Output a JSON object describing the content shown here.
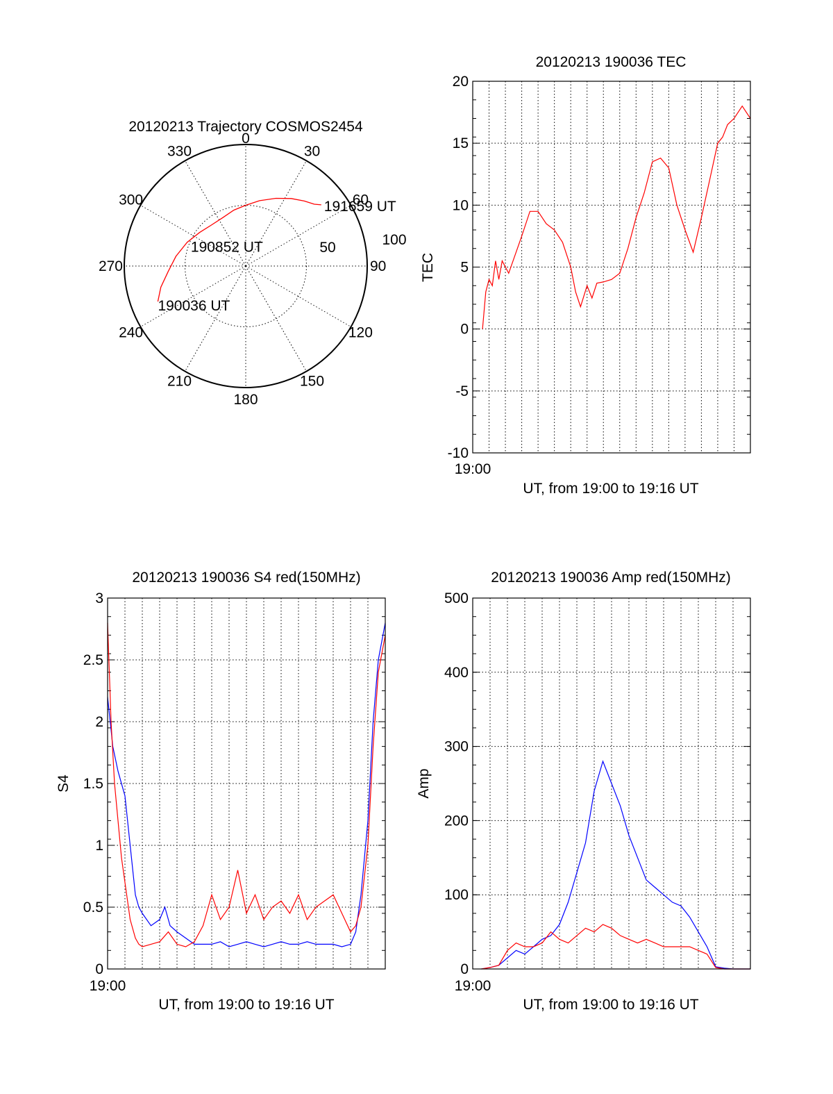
{
  "chart_data": [
    {
      "type": "polar-trajectory",
      "title": "20120213 Trajectory COSMOS2454",
      "angle_ticks": [
        "0",
        "30",
        "60",
        "90",
        "120",
        "150",
        "180",
        "210",
        "240",
        "270",
        "300",
        "330"
      ],
      "radius_ticks": [
        "50",
        "100"
      ],
      "radius_max": 100,
      "trajectory": {
        "color": "#ff0000",
        "points": [
          {
            "azimuth": 248,
            "elevation": 22
          },
          {
            "azimuth": 256,
            "elevation": 28
          },
          {
            "azimuth": 266,
            "elevation": 36
          },
          {
            "azimuth": 278,
            "elevation": 42
          },
          {
            "azimuth": 292,
            "elevation": 48
          },
          {
            "azimuth": 306,
            "elevation": 53
          },
          {
            "azimuth": 320,
            "elevation": 56
          },
          {
            "azimuth": 334,
            "elevation": 56
          },
          {
            "azimuth": 348,
            "elevation": 53
          },
          {
            "azimuth": 0,
            "elevation": 50
          },
          {
            "azimuth": 12,
            "elevation": 45
          },
          {
            "azimuth": 24,
            "elevation": 39
          },
          {
            "azimuth": 34,
            "elevation": 33
          },
          {
            "azimuth": 42,
            "elevation": 28
          },
          {
            "azimuth": 48,
            "elevation": 24
          },
          {
            "azimuth": 51,
            "elevation": 20
          }
        ]
      },
      "annotations": [
        {
          "text": "191659 UT",
          "at": "end"
        },
        {
          "text": "190852 UT",
          "at": "middle"
        },
        {
          "text": "190036 UT",
          "at": "start"
        }
      ]
    },
    {
      "type": "line",
      "title": "20120213 190036 TEC",
      "xlabel": "UT, from 19:00 to 19:16 UT",
      "ylabel": "TEC",
      "xlim": [
        0,
        17
      ],
      "ylim": [
        -10,
        20
      ],
      "yticks": [
        "-10",
        "-5",
        "0",
        "5",
        "10",
        "15",
        "20"
      ],
      "xtick_label": "19:00",
      "grid": true,
      "series": [
        {
          "color": "#ff0000",
          "x": [
            0.6,
            0.8,
            1.0,
            1.2,
            1.4,
            1.6,
            1.8,
            2.0,
            2.2,
            2.6,
            3.0,
            3.5,
            4.0,
            4.5,
            5.0,
            5.5,
            6.0,
            6.3,
            6.6,
            7.0,
            7.3,
            7.6,
            8.0,
            8.5,
            9.0,
            9.5,
            10.0,
            10.5,
            11.0,
            11.5,
            12.0,
            12.5,
            13.0,
            13.5,
            14.0,
            14.5,
            15.0,
            15.3,
            15.6,
            16.0,
            16.5,
            17.0
          ],
          "y": [
            0,
            3,
            4,
            3.5,
            5.5,
            4,
            5.5,
            5,
            4.5,
            6,
            7.5,
            9.5,
            9.5,
            8.5,
            8,
            7,
            5,
            3,
            1.8,
            3.5,
            2.5,
            3.7,
            3.8,
            4,
            4.5,
            6.5,
            9,
            11,
            13.5,
            13.8,
            13,
            10,
            8,
            6.2,
            9,
            12,
            15,
            15.5,
            16.5,
            17,
            18,
            17
          ]
        }
      ]
    },
    {
      "type": "line",
      "title": "20120213 190036 S4 red(150MHz)",
      "xlabel": "UT, from 19:00 to 19:16 UT",
      "ylabel": "S4",
      "xlim": [
        0,
        16
      ],
      "ylim": [
        0,
        3
      ],
      "yticks": [
        "0",
        "0.5",
        "1",
        "1.5",
        "2",
        "2.5",
        "3"
      ],
      "xtick_label": "19:00",
      "grid": true,
      "series": [
        {
          "color": "#0000ff",
          "x": [
            0.0,
            0.3,
            0.6,
            1.0,
            1.3,
            1.6,
            1.8,
            2.0,
            2.5,
            3.0,
            3.3,
            3.6,
            4.0,
            4.5,
            5.0,
            5.5,
            6.0,
            6.5,
            7.0,
            7.5,
            8.0,
            8.5,
            9.0,
            9.5,
            10.0,
            10.5,
            11.0,
            11.5,
            12.0,
            12.5,
            13.0,
            13.5,
            14.0,
            14.3,
            14.6,
            15.0,
            15.3,
            15.6,
            16.0
          ],
          "y": [
            2.2,
            1.8,
            1.6,
            1.4,
            1.0,
            0.6,
            0.5,
            0.45,
            0.35,
            0.4,
            0.5,
            0.35,
            0.3,
            0.25,
            0.2,
            0.2,
            0.2,
            0.22,
            0.18,
            0.2,
            0.22,
            0.2,
            0.18,
            0.2,
            0.22,
            0.2,
            0.2,
            0.22,
            0.2,
            0.2,
            0.2,
            0.18,
            0.2,
            0.3,
            0.6,
            1.2,
            2.0,
            2.5,
            2.8
          ]
        },
        {
          "color": "#ff0000",
          "x": [
            0.0,
            0.2,
            0.4,
            0.6,
            0.8,
            1.0,
            1.3,
            1.6,
            1.8,
            2.0,
            2.5,
            3.0,
            3.5,
            4.0,
            4.5,
            5.0,
            5.5,
            6.0,
            6.5,
            7.0,
            7.5,
            8.0,
            8.5,
            9.0,
            9.5,
            10.0,
            10.5,
            11.0,
            11.5,
            12.0,
            12.5,
            13.0,
            13.5,
            14.0,
            14.3,
            14.6,
            15.0,
            15.3,
            15.6,
            16.0
          ],
          "y": [
            2.8,
            2.0,
            1.5,
            1.2,
            0.9,
            0.7,
            0.4,
            0.25,
            0.2,
            0.18,
            0.2,
            0.22,
            0.3,
            0.2,
            0.18,
            0.22,
            0.35,
            0.6,
            0.4,
            0.5,
            0.8,
            0.45,
            0.6,
            0.4,
            0.5,
            0.55,
            0.45,
            0.6,
            0.4,
            0.5,
            0.55,
            0.6,
            0.45,
            0.3,
            0.35,
            0.5,
            1.0,
            1.8,
            2.4,
            2.7
          ]
        }
      ]
    },
    {
      "type": "line",
      "title": "20120213 190036 Amp red(150MHz)",
      "xlabel": "UT, from 19:00 to 19:16 UT",
      "ylabel": "Amp",
      "xlim": [
        0,
        16
      ],
      "ylim": [
        0,
        500
      ],
      "yticks": [
        "0",
        "100",
        "200",
        "300",
        "400",
        "500"
      ],
      "xtick_label": "19:00",
      "grid": true,
      "series": [
        {
          "color": "#0000ff",
          "x": [
            0.5,
            1.0,
            1.5,
            2.0,
            2.5,
            3.0,
            3.5,
            4.0,
            4.5,
            5.0,
            5.5,
            6.0,
            6.5,
            7.0,
            7.5,
            8.0,
            8.5,
            9.0,
            9.5,
            10.0,
            10.5,
            11.0,
            11.5,
            12.0,
            12.5,
            13.0,
            13.5,
            14.0,
            14.5,
            15.0,
            15.5,
            16.0
          ],
          "y": [
            0,
            2,
            5,
            15,
            25,
            20,
            30,
            40,
            45,
            60,
            90,
            130,
            170,
            240,
            280,
            250,
            220,
            180,
            150,
            120,
            110,
            100,
            90,
            85,
            70,
            50,
            30,
            3,
            1,
            0,
            0,
            0
          ]
        },
        {
          "color": "#ff0000",
          "x": [
            0.5,
            1.0,
            1.5,
            2.0,
            2.5,
            3.0,
            3.5,
            4.0,
            4.5,
            5.0,
            5.5,
            6.0,
            6.5,
            7.0,
            7.5,
            8.0,
            8.5,
            9.0,
            9.5,
            10.0,
            10.5,
            11.0,
            11.5,
            12.0,
            12.5,
            13.0,
            13.5,
            14.0,
            14.5,
            15.0,
            15.5,
            16.0
          ],
          "y": [
            0,
            2,
            5,
            25,
            35,
            30,
            30,
            35,
            50,
            40,
            35,
            45,
            55,
            50,
            60,
            55,
            45,
            40,
            35,
            40,
            35,
            30,
            30,
            30,
            30,
            25,
            20,
            2,
            0,
            0,
            0,
            0
          ]
        }
      ]
    }
  ]
}
